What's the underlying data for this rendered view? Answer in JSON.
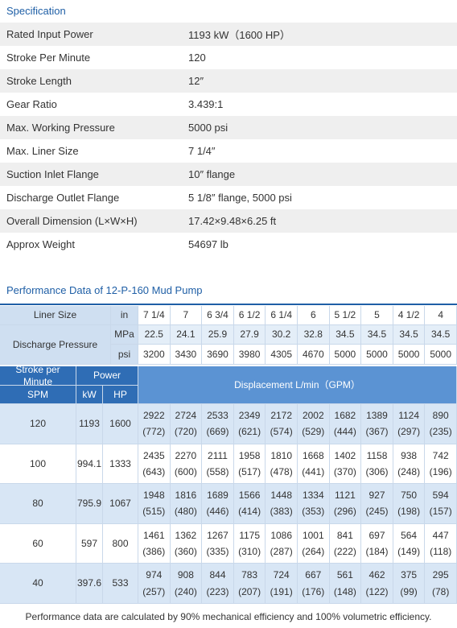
{
  "specification": {
    "title": "Specification",
    "rows": [
      [
        "Rated Input Power",
        "1193 kW（1600 HP）"
      ],
      [
        "Stroke Per Minute",
        "120"
      ],
      [
        "Stroke Length",
        "12″"
      ],
      [
        "Gear Ratio",
        "3.439:1"
      ],
      [
        "Max. Working Pressure",
        "5000 psi"
      ],
      [
        "Max. Liner Size",
        "7 1/4″"
      ],
      [
        "Suction Inlet Flange",
        "10″ flange"
      ],
      [
        "Discharge Outlet Flange",
        "5 1/8″ flange, 5000 psi"
      ],
      [
        "Overall Dimension (L×W×H)",
        "17.42×9.48×6.25 ft"
      ],
      [
        "Approx Weight",
        "54697 lb"
      ]
    ]
  },
  "performance": {
    "title": "Performance Data of 12-P-160 Mud Pump",
    "header": {
      "liner_label": "Liner Size",
      "liner_unit": "in",
      "liner_sizes": [
        "7 1/4",
        "7",
        "6 3/4",
        "6 1/2",
        "6 1/4",
        "6",
        "5 1/2",
        "5",
        "4 1/2",
        "4"
      ],
      "pressure_label": "Discharge Pressure",
      "mpa_unit": "MPa",
      "mpa": [
        "22.5",
        "24.1",
        "25.9",
        "27.9",
        "30.2",
        "32.8",
        "34.5",
        "34.5",
        "34.5",
        "34.5"
      ],
      "psi_unit": "psi",
      "psi": [
        "3200",
        "3430",
        "3690",
        "3980",
        "4305",
        "4670",
        "5000",
        "5000",
        "5000",
        "5000"
      ],
      "spm_label": "Stroke per Minute",
      "power_label": "Power",
      "spm_sub": "SPM",
      "kw_label": "kW",
      "hp_label": "HP",
      "displacement_label": "Displacement  L/min（GPM）"
    },
    "rows": [
      {
        "spm": "120",
        "kw": "1193",
        "hp": "1600",
        "lmin": [
          "2922",
          "2724",
          "2533",
          "2349",
          "2172",
          "2002",
          "1682",
          "1389",
          "1124",
          "890"
        ],
        "gpm": [
          "(772)",
          "(720)",
          "(669)",
          "(621)",
          "(574)",
          "(529)",
          "(444)",
          "(367)",
          "(297)",
          "(235)"
        ]
      },
      {
        "spm": "100",
        "kw": "994.1",
        "hp": "1333",
        "lmin": [
          "2435",
          "2270",
          "2111",
          "1958",
          "1810",
          "1668",
          "1402",
          "1158",
          "938",
          "742"
        ],
        "gpm": [
          "(643)",
          "(600)",
          "(558)",
          "(517)",
          "(478)",
          "(441)",
          "(370)",
          "(306)",
          "(248)",
          "(196)"
        ]
      },
      {
        "spm": "80",
        "kw": "795.9",
        "hp": "1067",
        "lmin": [
          "1948",
          "1816",
          "1689",
          "1566",
          "1448",
          "1334",
          "1121",
          "927",
          "750",
          "594"
        ],
        "gpm": [
          "(515)",
          "(480)",
          "(446)",
          "(414)",
          "(383)",
          "(353)",
          "(296)",
          "(245)",
          "(198)",
          "(157)"
        ]
      },
      {
        "spm": "60",
        "kw": "597",
        "hp": "800",
        "lmin": [
          "1461",
          "1362",
          "1267",
          "1175",
          "1086",
          "1001",
          "841",
          "697",
          "564",
          "447"
        ],
        "gpm": [
          "(386)",
          "(360)",
          "(335)",
          "(310)",
          "(287)",
          "(264)",
          "(222)",
          "(184)",
          "(149)",
          "(118)"
        ]
      },
      {
        "spm": "40",
        "kw": "397.6",
        "hp": "533",
        "lmin": [
          "974",
          "908",
          "844",
          "783",
          "724",
          "667",
          "561",
          "462",
          "375",
          "295"
        ],
        "gpm": [
          "(257)",
          "(240)",
          "(223)",
          "(207)",
          "(191)",
          "(176)",
          "(148)",
          "(122)",
          "(99)",
          "(78)"
        ]
      }
    ],
    "footnote": "Performance data are calculated by 90% mechanical efficiency and 100% volumetric efficiency."
  }
}
